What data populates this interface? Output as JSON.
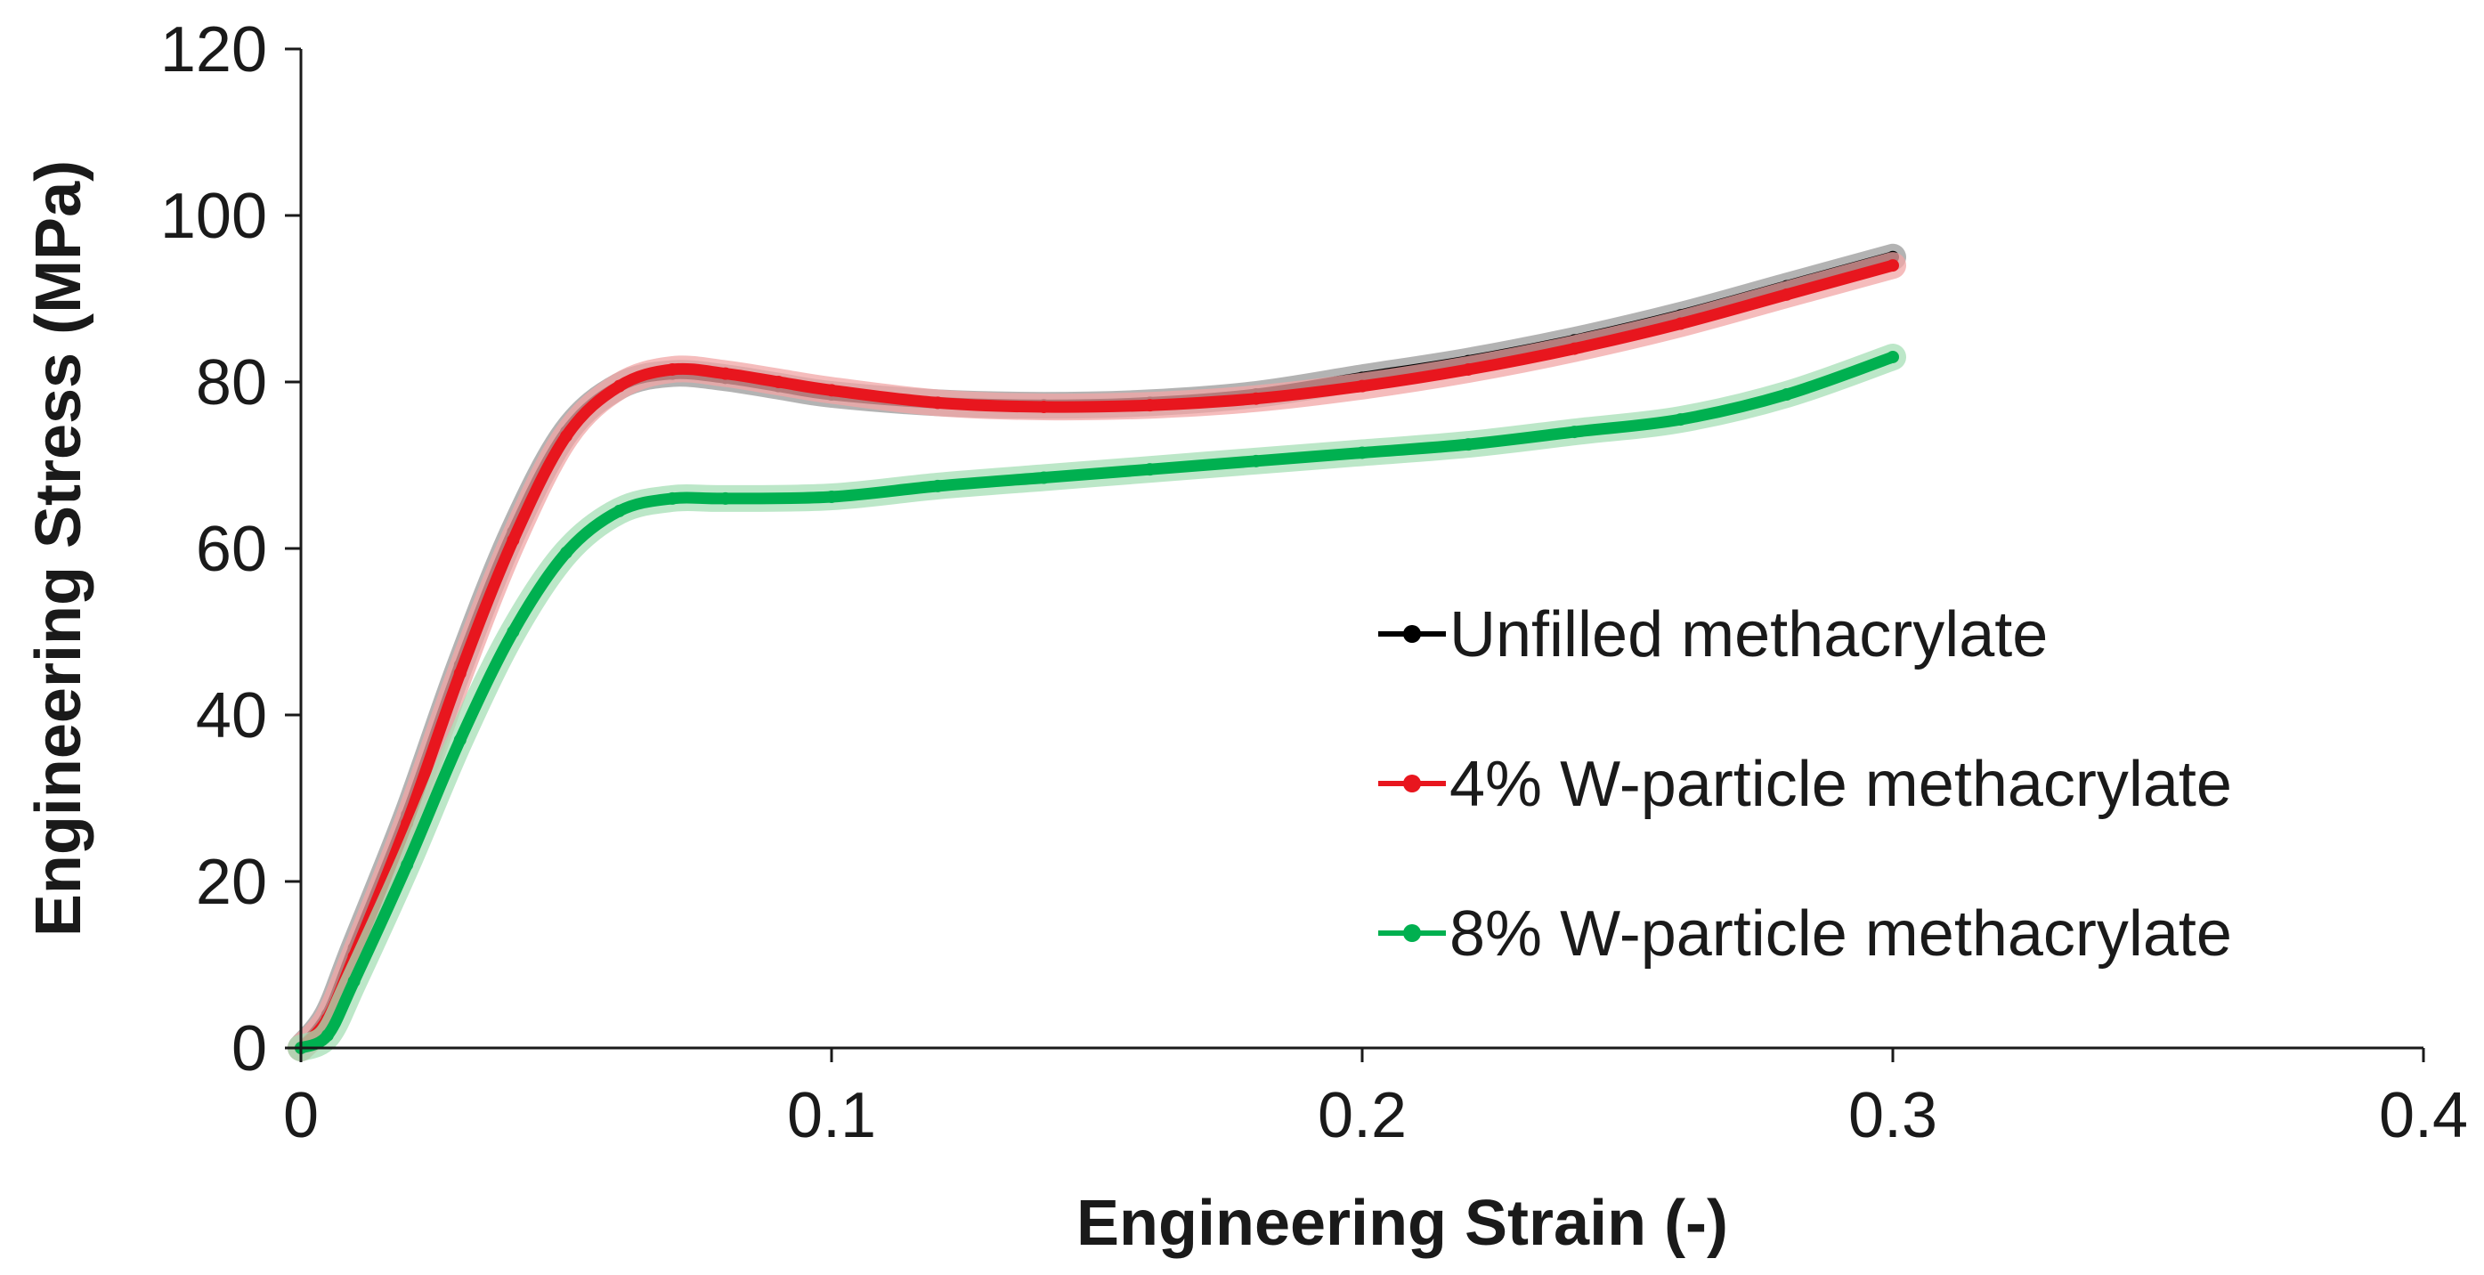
{
  "chart_data": {
    "type": "line",
    "xlabel": "Engineering Strain (-)",
    "ylabel": "Engineering Stress (MPa)",
    "xlim": [
      0,
      0.4
    ],
    "ylim": [
      0,
      120
    ],
    "x_ticks": [
      0,
      0.1,
      0.2,
      0.3,
      0.4
    ],
    "x_tick_labels": [
      "0",
      "0.1",
      "0.2",
      "0.3",
      "0.4"
    ],
    "y_ticks": [
      0,
      20,
      40,
      60,
      80,
      100,
      120
    ],
    "y_tick_labels": [
      "0",
      "20",
      "40",
      "60",
      "80",
      "100",
      "120"
    ],
    "grid": false,
    "legend_position": "center-right",
    "series": [
      {
        "name": "Unfilled methacrylate",
        "color": "#000000",
        "shade": "#9a9a9a",
        "points": [
          [
            0,
            0
          ],
          [
            0.005,
            4
          ],
          [
            0.01,
            12
          ],
          [
            0.02,
            28
          ],
          [
            0.03,
            46
          ],
          [
            0.04,
            62
          ],
          [
            0.05,
            74
          ],
          [
            0.06,
            79.5
          ],
          [
            0.07,
            81
          ],
          [
            0.08,
            80.5
          ],
          [
            0.09,
            79.5
          ],
          [
            0.1,
            78.5
          ],
          [
            0.12,
            77.5
          ],
          [
            0.14,
            77.2
          ],
          [
            0.16,
            77.5
          ],
          [
            0.18,
            78.5
          ],
          [
            0.2,
            80.5
          ],
          [
            0.22,
            82.5
          ],
          [
            0.24,
            85
          ],
          [
            0.26,
            88
          ],
          [
            0.28,
            91.5
          ],
          [
            0.3,
            95
          ]
        ]
      },
      {
        "name": "4% W-particle methacrylate",
        "color": "#e8161e",
        "shade": "#f2a6a6",
        "points": [
          [
            0,
            0
          ],
          [
            0.005,
            3.5
          ],
          [
            0.01,
            11
          ],
          [
            0.02,
            27
          ],
          [
            0.03,
            45
          ],
          [
            0.04,
            61
          ],
          [
            0.05,
            73.5
          ],
          [
            0.06,
            79.5
          ],
          [
            0.07,
            81.5
          ],
          [
            0.08,
            81
          ],
          [
            0.09,
            80
          ],
          [
            0.1,
            79
          ],
          [
            0.12,
            77.5
          ],
          [
            0.14,
            77
          ],
          [
            0.16,
            77.2
          ],
          [
            0.18,
            78
          ],
          [
            0.2,
            79.5
          ],
          [
            0.22,
            81.5
          ],
          [
            0.24,
            84
          ],
          [
            0.26,
            87
          ],
          [
            0.28,
            90.5
          ],
          [
            0.3,
            94
          ]
        ]
      },
      {
        "name": "8% W-particle methacrylate",
        "color": "#00b050",
        "shade": "#a6dfb6",
        "points": [
          [
            0,
            0
          ],
          [
            0.005,
            1.5
          ],
          [
            0.01,
            8
          ],
          [
            0.02,
            22
          ],
          [
            0.03,
            37
          ],
          [
            0.04,
            50
          ],
          [
            0.05,
            59.5
          ],
          [
            0.06,
            64.5
          ],
          [
            0.07,
            66
          ],
          [
            0.08,
            66
          ],
          [
            0.1,
            66.2
          ],
          [
            0.12,
            67.5
          ],
          [
            0.14,
            68.5
          ],
          [
            0.16,
            69.5
          ],
          [
            0.18,
            70.5
          ],
          [
            0.2,
            71.5
          ],
          [
            0.22,
            72.5
          ],
          [
            0.24,
            74
          ],
          [
            0.26,
            75.5
          ],
          [
            0.28,
            78.5
          ],
          [
            0.3,
            83
          ]
        ]
      }
    ]
  }
}
